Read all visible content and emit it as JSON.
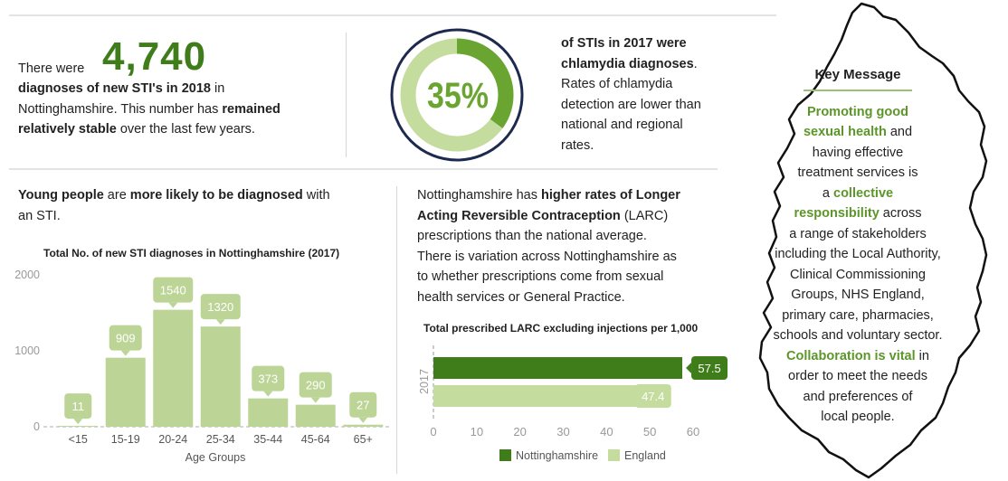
{
  "stat1": {
    "pre": "There were",
    "number": "4,740",
    "line1_bold": "diagnoses of new STI's in 2018",
    "line1_rest": " in",
    "line2": "Nottinghamshire. This number has ",
    "line2_bold": "remained",
    "line3_bold": "relatively stable",
    "line3_rest": " over the last few years."
  },
  "stat2": {
    "percent": "35%",
    "percent_value": 35,
    "bold1": "of STIs in 2017 were",
    "bold2": "chlamydia diagnoses",
    "bold2_rest": ".",
    "line3": "Rates of chlamydia",
    "line4": "detection are lower than",
    "line5": "national and regional",
    "line6": "rates."
  },
  "young": {
    "bold1": "Young people",
    "mid": " are ",
    "bold2": "more likely to be diagnosed",
    "rest": " with",
    "line2": "an STI."
  },
  "larc_text": {
    "l1_pre": "Nottinghamshire has ",
    "l1_bold": "higher rates of Longer",
    "l2_bold": "Acting Reversible Contraception",
    "l2_rest": " (LARC)",
    "l3": "prescriptions than the national average.",
    "l4": "There is variation across Nottinghamshire as",
    "l5": "to whether prescriptions come from sexual",
    "l6": "health services or General Practice."
  },
  "key": {
    "title": "Key Message",
    "l1": "Promoting good",
    "l2a": "sexual health",
    "l2b": " and",
    "l3": "having effective",
    "l4": "treatment services is",
    "l5a": "a ",
    "l5b": "collective",
    "l6a": "responsibility",
    "l6b": " across",
    "l7": "a range of stakeholders",
    "l8": "including the Local Authority,",
    "l9": "Clinical Commissioning",
    "l10": "Groups, NHS England,",
    "l11": "primary care, pharmacies,",
    "l12": "schools and voluntary sector.",
    "l13a": "Collaboration is vital",
    "l13b": " in",
    "l14": "order to meet the needs",
    "l15": "and preferences of",
    "l16": "local people."
  },
  "colors": {
    "dark_green": "#3e7d1a",
    "light_green": "#c4dc9e",
    "bar_green": "#bcd596",
    "navy": "#1d2a4e"
  },
  "chart_data": [
    {
      "type": "bar",
      "title": "Total No. of new STI diagnoses in Nottinghamshire (2017)",
      "xlabel": "Age Groups",
      "ylabel": "",
      "categories": [
        "<15",
        "15-19",
        "20-24",
        "25-34",
        "35-44",
        "45-64",
        "65+"
      ],
      "values": [
        11,
        909,
        1540,
        1320,
        373,
        290,
        27
      ],
      "labels": [
        "11",
        "909",
        "1540",
        "1320",
        "373",
        "290",
        "27"
      ],
      "yticks": [
        "0",
        "1000",
        "2000"
      ],
      "ylim": [
        0,
        2000
      ],
      "grid": false
    },
    {
      "type": "bar",
      "orientation": "horizontal",
      "title": "Total prescribed LARC excluding injections per 1,000",
      "categories": [
        "2017"
      ],
      "series": [
        {
          "name": "Nottinghamshire",
          "values": [
            57.5
          ],
          "label": "57.5",
          "color": "#3e7d1a"
        },
        {
          "name": "England",
          "values": [
            47.4
          ],
          "label": "47.4",
          "color": "#c4dc9e"
        }
      ],
      "xticks": [
        "0",
        "10",
        "20",
        "30",
        "40",
        "50",
        "60"
      ],
      "xlim": [
        0,
        60
      ],
      "legend": "bottom"
    }
  ]
}
